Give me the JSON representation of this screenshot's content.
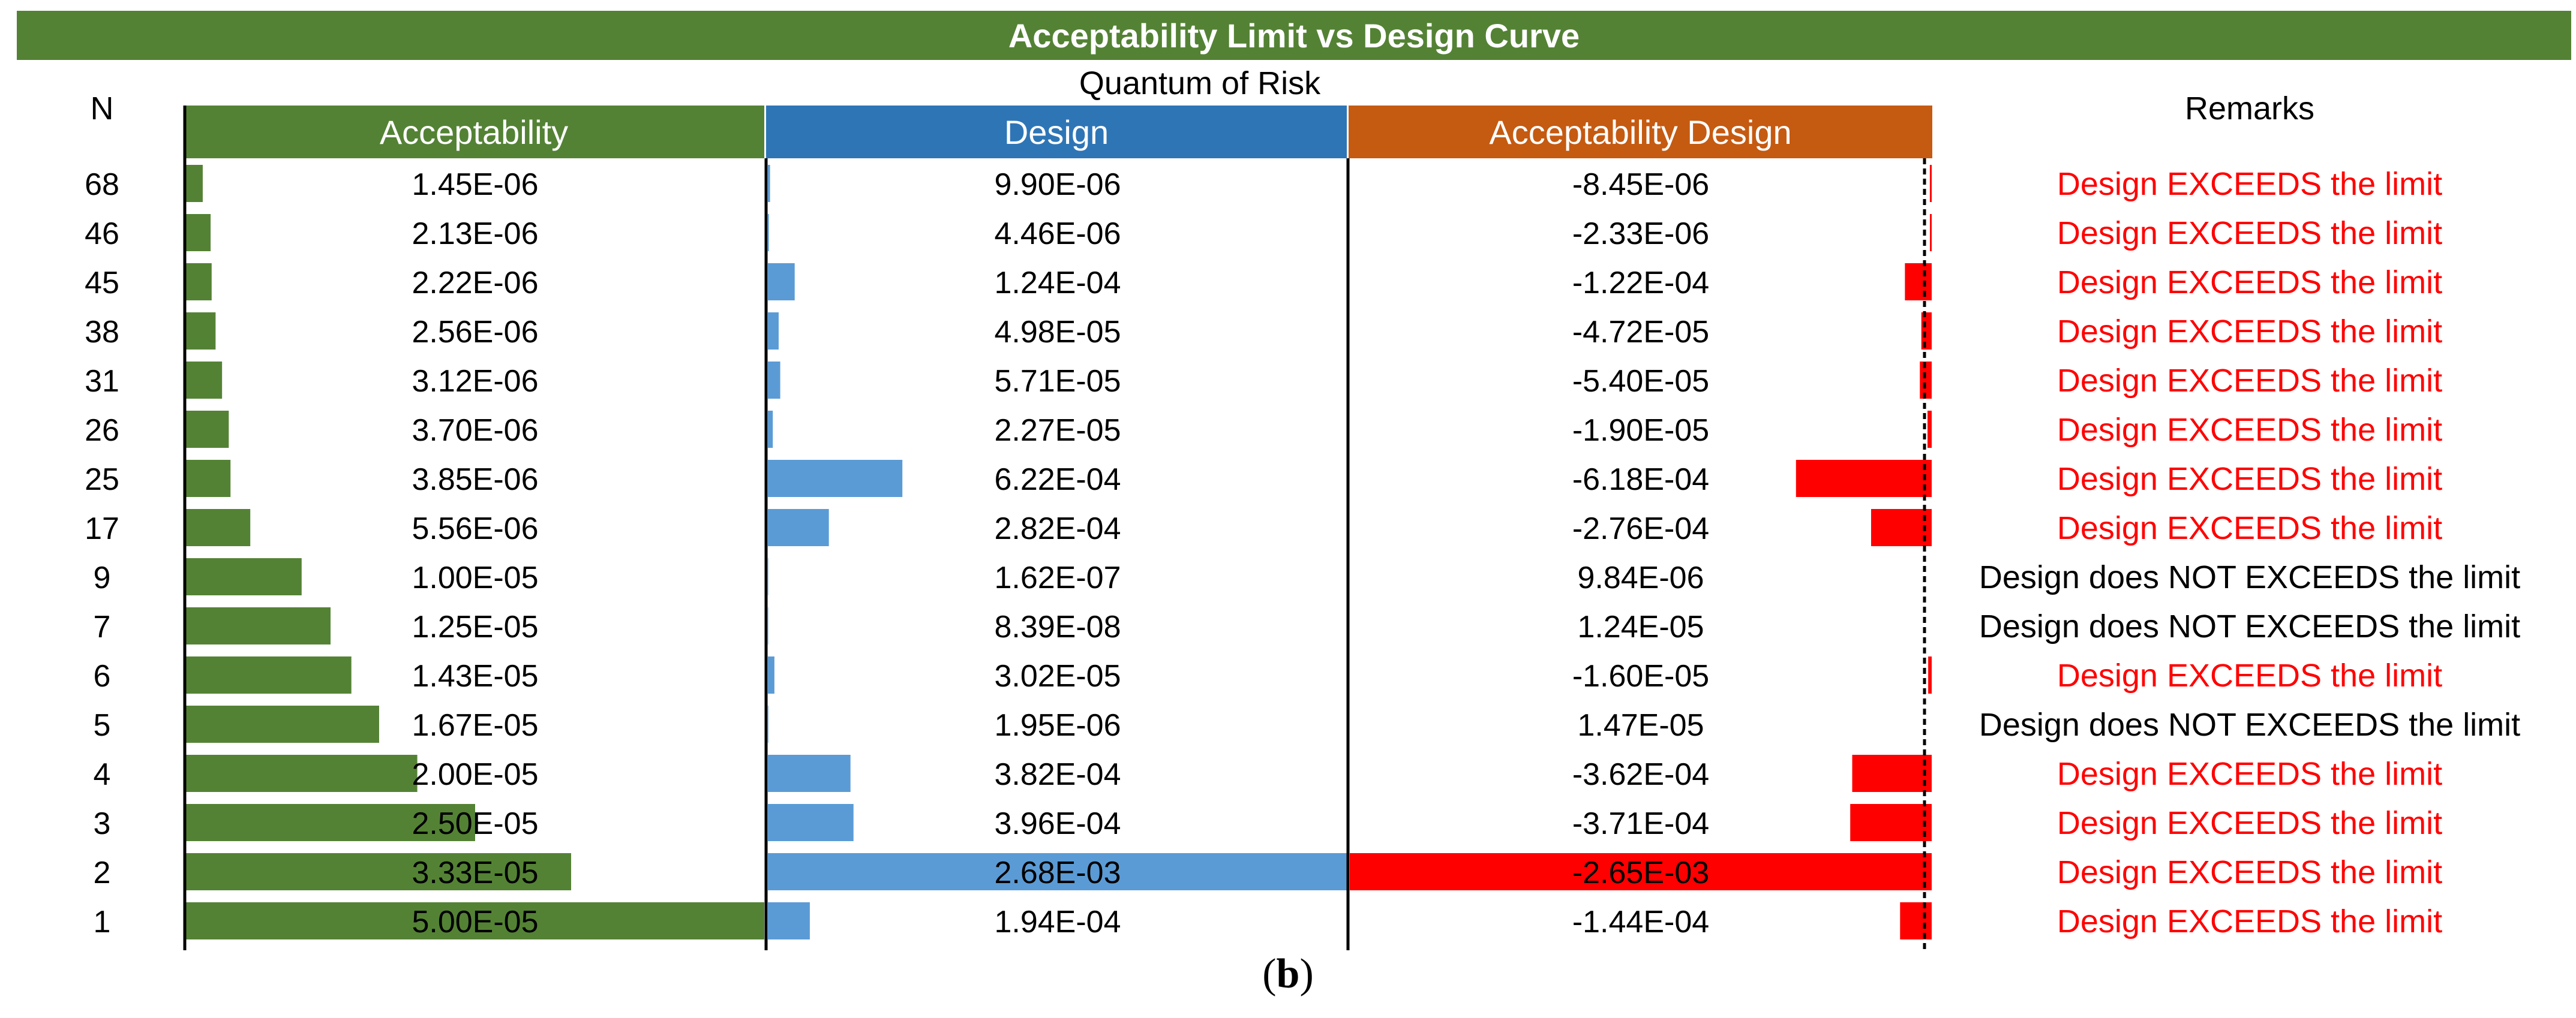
{
  "chart_data": {
    "type": "table",
    "title": "Acceptability Limit vs Design Curve",
    "subtitle": "Quantum of Risk",
    "row_header": "N",
    "remarks_header": "Remarks",
    "columns": [
      "Acceptability",
      "Design",
      "Acceptability Design"
    ],
    "N": [
      "68",
      "46",
      "45",
      "38",
      "31",
      "26",
      "25",
      "17",
      "9",
      "7",
      "6",
      "5",
      "4",
      "3",
      "2",
      "1"
    ],
    "series": [
      {
        "name": "Acceptability",
        "color": "#548235",
        "labels": [
          "1.45E-06",
          "2.13E-06",
          "2.22E-06",
          "2.56E-06",
          "3.12E-06",
          "3.70E-06",
          "3.85E-06",
          "5.56E-06",
          "1.00E-05",
          "1.25E-05",
          "1.43E-05",
          "1.67E-05",
          "2.00E-05",
          "2.50E-05",
          "3.33E-05",
          "5.00E-05"
        ],
        "values": [
          1.45e-06,
          2.13e-06,
          2.22e-06,
          2.56e-06,
          3.12e-06,
          3.7e-06,
          3.85e-06,
          5.56e-06,
          1e-05,
          1.25e-05,
          1.43e-05,
          1.67e-05,
          2e-05,
          2.5e-05,
          3.33e-05,
          5e-05
        ]
      },
      {
        "name": "Design",
        "color": "#5b9bd5",
        "labels": [
          "9.90E-06",
          "4.46E-06",
          "1.24E-04",
          "4.98E-05",
          "5.71E-05",
          "2.27E-05",
          "6.22E-04",
          "2.82E-04",
          "1.62E-07",
          "8.39E-08",
          "3.02E-05",
          "1.95E-06",
          "3.82E-04",
          "3.96E-04",
          "2.68E-03",
          "1.94E-04"
        ],
        "values": [
          9.9e-06,
          4.46e-06,
          0.000124,
          4.98e-05,
          5.71e-05,
          2.27e-05,
          0.000622,
          0.000282,
          1.62e-07,
          8.39e-08,
          3.02e-05,
          1.95e-06,
          0.000382,
          0.000396,
          0.00268,
          0.000194
        ]
      },
      {
        "name": "Acceptability Design",
        "color": "#ff0000",
        "labels": [
          "-8.45E-06",
          "-2.33E-06",
          "-1.22E-04",
          "-4.72E-05",
          "-5.40E-05",
          "-1.90E-05",
          "-6.18E-04",
          "-2.76E-04",
          "9.84E-06",
          "1.24E-05",
          "-1.60E-05",
          "1.47E-05",
          "-3.62E-04",
          "-3.71E-04",
          "-2.65E-03",
          "-1.44E-04"
        ],
        "values": [
          -8.45e-06,
          -2.33e-06,
          -0.000122,
          -4.72e-05,
          -5.4e-05,
          -1.9e-05,
          -0.000618,
          -0.000276,
          9.84e-06,
          1.24e-05,
          -1.6e-05,
          1.47e-05,
          -0.000362,
          -0.000371,
          -0.00265,
          -0.000144
        ]
      }
    ],
    "remarks": [
      "Design EXCEEDS the limit",
      "Design EXCEEDS the limit",
      "Design EXCEEDS the limit",
      "Design EXCEEDS the limit",
      "Design EXCEEDS the limit",
      "Design EXCEEDS the limit",
      "Design EXCEEDS the limit",
      "Design EXCEEDS the limit",
      "Design does NOT EXCEEDS the limit",
      "Design does NOT EXCEEDS the limit",
      "Design EXCEEDS the limit",
      "Design does NOT EXCEEDS the limit",
      "Design EXCEEDS the limit",
      "Design EXCEEDS the limit",
      "Design EXCEEDS the limit",
      "Design EXCEEDS the limit"
    ],
    "remark_colors": {
      "exceeds": "#ff0000",
      "not_exceeds": "#000000"
    },
    "column_header_colors": [
      "#548235",
      "#2e75b6",
      "#c55a11"
    ]
  },
  "caption": {
    "open": "(",
    "letter": "b",
    "close": ")"
  }
}
